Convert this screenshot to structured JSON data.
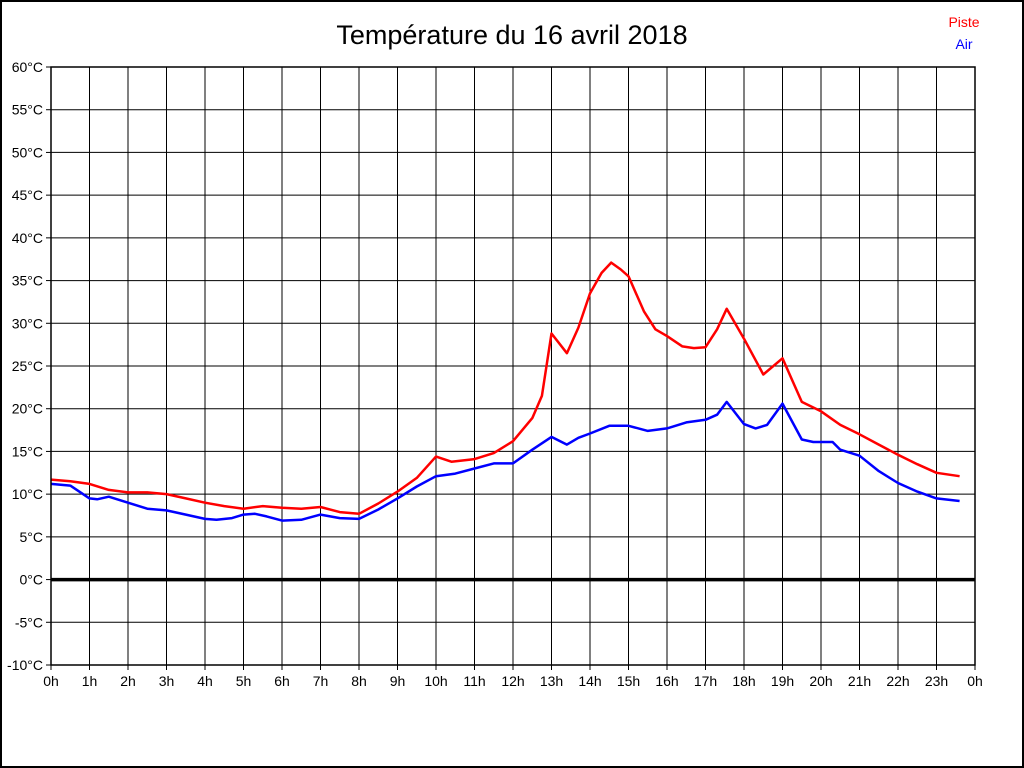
{
  "header": {
    "title": "Température du 16 avril 2018"
  },
  "legend": {
    "items": [
      {
        "label": "Piste",
        "color": "#ff0000"
      },
      {
        "label": "Air",
        "color": "#0000ff"
      }
    ]
  },
  "chart_data": {
    "type": "line",
    "title": "Température du 16 avril 2018",
    "xlabel": "",
    "ylabel": "",
    "x_unit": "hour of day",
    "y_unit": "°C",
    "xlim": [
      0,
      24
    ],
    "ylim": [
      -10,
      60
    ],
    "grid": true,
    "legend_position": "top-right",
    "frame_color": "#000000",
    "grid_color": "#000000",
    "zero_line": {
      "value": 0,
      "color": "#000000",
      "width": 3.5
    },
    "x_ticks": [
      {
        "v": 0,
        "label": "0h"
      },
      {
        "v": 1,
        "label": "1h"
      },
      {
        "v": 2,
        "label": "2h"
      },
      {
        "v": 3,
        "label": "3h"
      },
      {
        "v": 4,
        "label": "4h"
      },
      {
        "v": 5,
        "label": "5h"
      },
      {
        "v": 6,
        "label": "6h"
      },
      {
        "v": 7,
        "label": "7h"
      },
      {
        "v": 8,
        "label": "8h"
      },
      {
        "v": 9,
        "label": "9h"
      },
      {
        "v": 10,
        "label": "10h"
      },
      {
        "v": 11,
        "label": "11h"
      },
      {
        "v": 12,
        "label": "12h"
      },
      {
        "v": 13,
        "label": "13h"
      },
      {
        "v": 14,
        "label": "14h"
      },
      {
        "v": 15,
        "label": "15h"
      },
      {
        "v": 16,
        "label": "16h"
      },
      {
        "v": 17,
        "label": "17h"
      },
      {
        "v": 18,
        "label": "18h"
      },
      {
        "v": 19,
        "label": "19h"
      },
      {
        "v": 20,
        "label": "20h"
      },
      {
        "v": 21,
        "label": "21h"
      },
      {
        "v": 22,
        "label": "22h"
      },
      {
        "v": 23,
        "label": "23h"
      },
      {
        "v": 24,
        "label": "0h"
      }
    ],
    "y_ticks": [
      {
        "v": 60,
        "label": "60°C"
      },
      {
        "v": 55,
        "label": "55°C"
      },
      {
        "v": 50,
        "label": "50°C"
      },
      {
        "v": 45,
        "label": "45°C"
      },
      {
        "v": 40,
        "label": "40°C"
      },
      {
        "v": 35,
        "label": "35°C"
      },
      {
        "v": 30,
        "label": "30°C"
      },
      {
        "v": 25,
        "label": "25°C"
      },
      {
        "v": 20,
        "label": "20°C"
      },
      {
        "v": 15,
        "label": "15°C"
      },
      {
        "v": 10,
        "label": "10°C"
      },
      {
        "v": 5,
        "label": "5°C"
      },
      {
        "v": 0,
        "label": "0°C"
      },
      {
        "v": -5,
        "label": "-5°C"
      },
      {
        "v": -10,
        "label": "-10°C"
      }
    ],
    "series": [
      {
        "name": "Piste",
        "color": "#ff0000",
        "width": 2.5,
        "points": [
          [
            0,
            11.7
          ],
          [
            0.5,
            11.5
          ],
          [
            1,
            11.2
          ],
          [
            1.5,
            10.5
          ],
          [
            2,
            10.2
          ],
          [
            2.5,
            10.2
          ],
          [
            3,
            10
          ],
          [
            3.5,
            9.5
          ],
          [
            4,
            9
          ],
          [
            4.5,
            8.6
          ],
          [
            5,
            8.3
          ],
          [
            5.5,
            8.6
          ],
          [
            6,
            8.4
          ],
          [
            6.5,
            8.3
          ],
          [
            7,
            8.5
          ],
          [
            7.5,
            7.9
          ],
          [
            8,
            7.7
          ],
          [
            8.5,
            8.9
          ],
          [
            9,
            10.3
          ],
          [
            9.5,
            11.9
          ],
          [
            10,
            14.4
          ],
          [
            10.4,
            13.8
          ],
          [
            11,
            14.1
          ],
          [
            11.5,
            14.8
          ],
          [
            12,
            16.2
          ],
          [
            12.5,
            18.9
          ],
          [
            12.75,
            21.5
          ],
          [
            13,
            28.8
          ],
          [
            13.4,
            26.5
          ],
          [
            13.7,
            29.5
          ],
          [
            14,
            33.5
          ],
          [
            14.3,
            35.9
          ],
          [
            14.55,
            37.1
          ],
          [
            14.8,
            36.3
          ],
          [
            15,
            35.5
          ],
          [
            15.4,
            31.4
          ],
          [
            15.7,
            29.3
          ],
          [
            16,
            28.5
          ],
          [
            16.4,
            27.3
          ],
          [
            16.7,
            27.1
          ],
          [
            17,
            27.2
          ],
          [
            17.3,
            29.3
          ],
          [
            17.55,
            31.7
          ],
          [
            18,
            28.2
          ],
          [
            18.5,
            24
          ],
          [
            19,
            25.9
          ],
          [
            19.5,
            20.8
          ],
          [
            20,
            19.7
          ],
          [
            20.5,
            18.1
          ],
          [
            21,
            17
          ],
          [
            21.5,
            15.8
          ],
          [
            22,
            14.6
          ],
          [
            22.5,
            13.5
          ],
          [
            23,
            12.5
          ],
          [
            23.6,
            12.1
          ]
        ]
      },
      {
        "name": "Air",
        "color": "#0000ff",
        "width": 2.5,
        "points": [
          [
            0,
            11.2
          ],
          [
            0.5,
            11
          ],
          [
            1,
            9.5
          ],
          [
            1.2,
            9.4
          ],
          [
            1.5,
            9.7
          ],
          [
            2,
            9
          ],
          [
            2.5,
            8.3
          ],
          [
            3,
            8.1
          ],
          [
            3.5,
            7.6
          ],
          [
            4,
            7.1
          ],
          [
            4.3,
            7
          ],
          [
            4.7,
            7.2
          ],
          [
            5,
            7.6
          ],
          [
            5.3,
            7.7
          ],
          [
            5.6,
            7.4
          ],
          [
            6,
            6.9
          ],
          [
            6.5,
            7
          ],
          [
            7,
            7.6
          ],
          [
            7.5,
            7.2
          ],
          [
            8,
            7.1
          ],
          [
            8.5,
            8.2
          ],
          [
            9,
            9.5
          ],
          [
            9.5,
            10.9
          ],
          [
            10,
            12.1
          ],
          [
            10.5,
            12.4
          ],
          [
            11,
            13
          ],
          [
            11.5,
            13.6
          ],
          [
            12,
            13.6
          ],
          [
            12.5,
            15.2
          ],
          [
            13,
            16.7
          ],
          [
            13.4,
            15.8
          ],
          [
            13.7,
            16.6
          ],
          [
            14,
            17.1
          ],
          [
            14.5,
            18
          ],
          [
            15,
            18
          ],
          [
            15.5,
            17.4
          ],
          [
            16,
            17.7
          ],
          [
            16.5,
            18.4
          ],
          [
            17,
            18.7
          ],
          [
            17.3,
            19.3
          ],
          [
            17.55,
            20.8
          ],
          [
            18,
            18.2
          ],
          [
            18.3,
            17.7
          ],
          [
            18.6,
            18.1
          ],
          [
            19,
            20.6
          ],
          [
            19.5,
            16.4
          ],
          [
            19.8,
            16.1
          ],
          [
            20.3,
            16.1
          ],
          [
            20.5,
            15.2
          ],
          [
            21,
            14.5
          ],
          [
            21.5,
            12.7
          ],
          [
            22,
            11.3
          ],
          [
            22.5,
            10.3
          ],
          [
            23,
            9.5
          ],
          [
            23.6,
            9.2
          ]
        ]
      }
    ]
  }
}
